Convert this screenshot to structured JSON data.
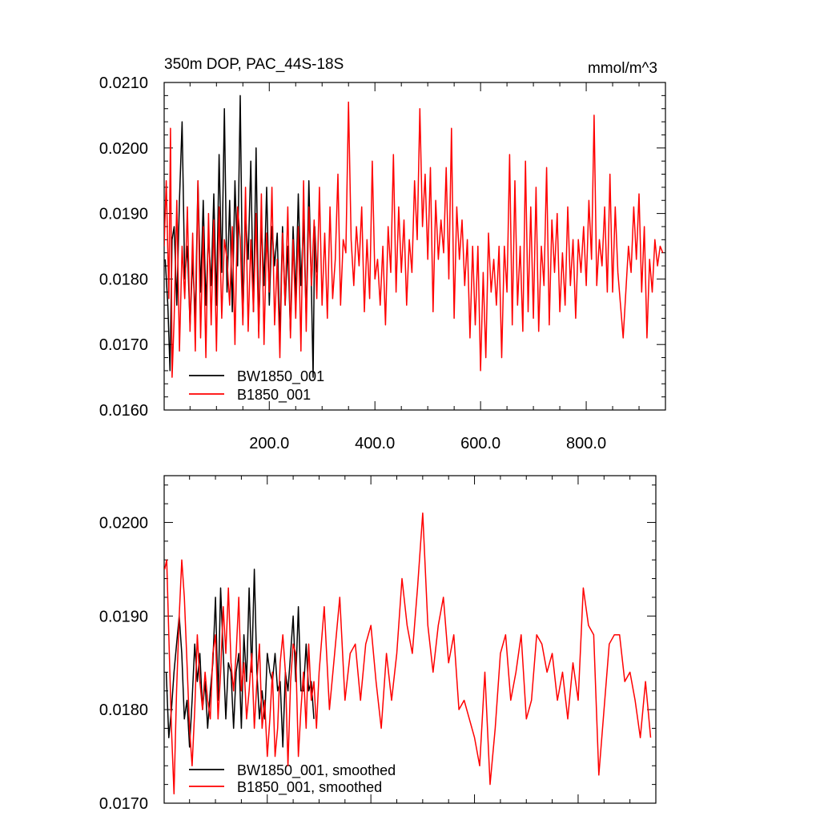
{
  "colors": {
    "black": "#000000",
    "red": "#ff0000",
    "frame": "#000000"
  },
  "chart_data": [
    {
      "type": "line",
      "title": "350m DOP, PAC_44S-18S",
      "units": "mmol/m^3",
      "xlim": [
        1,
        950
      ],
      "ylim": [
        0.016,
        0.021
      ],
      "grid": false,
      "legend_placement": "bottom-left",
      "xticks": [
        200,
        400,
        600,
        800
      ],
      "xtick_labels": [
        "200.0",
        "400.0",
        "600.0",
        "800.0"
      ],
      "yticks": [
        0.016,
        0.017,
        0.018,
        0.019,
        0.02,
        0.021
      ],
      "ytick_labels": [
        "0.0160",
        "0.0170",
        "0.0180",
        "0.0190",
        "0.0200",
        "0.0210"
      ],
      "series": [
        {
          "name": "BW1850_001",
          "color": "#000000",
          "x": [
            3,
            8,
            12,
            16,
            20,
            25,
            30,
            35,
            40,
            45,
            50,
            55,
            60,
            65,
            70,
            75,
            80,
            85,
            90,
            95,
            100,
            105,
            110,
            115,
            120,
            125,
            130,
            135,
            140,
            145,
            150,
            155,
            160,
            165,
            170,
            175,
            180,
            185,
            190,
            195,
            200,
            205,
            210,
            215,
            220,
            225,
            230,
            235,
            240,
            245,
            250,
            255,
            260,
            265,
            270,
            275,
            280,
            283,
            286,
            290
          ],
          "y": [
            0.0183,
            0.0176,
            0.0166,
            0.0186,
            0.0188,
            0.0176,
            0.0192,
            0.0204,
            0.018,
            0.0185,
            0.0173,
            0.0183,
            0.0174,
            0.0195,
            0.0178,
            0.0192,
            0.0176,
            0.0187,
            0.0179,
            0.0193,
            0.0176,
            0.0199,
            0.0181,
            0.0206,
            0.0178,
            0.0192,
            0.0175,
            0.0195,
            0.0182,
            0.0208,
            0.0174,
            0.019,
            0.0183,
            0.0198,
            0.0175,
            0.02,
            0.0172,
            0.0189,
            0.0179,
            0.0194,
            0.0176,
            0.0188,
            0.0182,
            0.0187,
            0.0171,
            0.0188,
            0.0176,
            0.0185,
            0.0172,
            0.0188,
            0.0177,
            0.0193,
            0.0179,
            0.0189,
            0.0174,
            0.0195,
            0.0178,
            0.0165,
            0.0188,
            0.0181
          ]
        },
        {
          "name": "B1850_001",
          "color": "#ff0000",
          "x": [
            1,
            5,
            10,
            13,
            16,
            20,
            25,
            30,
            35,
            40,
            45,
            50,
            55,
            60,
            65,
            70,
            75,
            80,
            85,
            90,
            95,
            100,
            105,
            110,
            115,
            120,
            125,
            130,
            135,
            140,
            145,
            150,
            155,
            160,
            165,
            170,
            175,
            180,
            185,
            190,
            195,
            200,
            205,
            210,
            215,
            220,
            225,
            230,
            235,
            240,
            245,
            250,
            255,
            260,
            265,
            270,
            275,
            280,
            285,
            290,
            295,
            300,
            305,
            310,
            315,
            320,
            325,
            330,
            335,
            340,
            345,
            350,
            355,
            360,
            365,
            370,
            375,
            380,
            385,
            390,
            395,
            400,
            405,
            410,
            415,
            420,
            425,
            430,
            435,
            440,
            445,
            450,
            455,
            460,
            465,
            470,
            475,
            480,
            485,
            490,
            495,
            500,
            505,
            510,
            515,
            520,
            525,
            530,
            535,
            540,
            545,
            550,
            555,
            560,
            565,
            570,
            575,
            580,
            585,
            590,
            595,
            600,
            605,
            610,
            615,
            620,
            625,
            630,
            635,
            640,
            645,
            650,
            655,
            660,
            665,
            670,
            675,
            680,
            685,
            690,
            695,
            700,
            705,
            710,
            715,
            720,
            725,
            730,
            735,
            740,
            745,
            750,
            755,
            760,
            765,
            770,
            775,
            780,
            785,
            790,
            795,
            800,
            805,
            810,
            815,
            820,
            825,
            830,
            835,
            840,
            845,
            850,
            855,
            860,
            865,
            870,
            875,
            880,
            885,
            890,
            895,
            900,
            905,
            910,
            915,
            920,
            925,
            930,
            935,
            940,
            945
          ],
          "y": [
            0.0185,
            0.0195,
            0.0177,
            0.0203,
            0.0165,
            0.0174,
            0.0192,
            0.0169,
            0.0185,
            0.0177,
            0.0191,
            0.0172,
            0.0187,
            0.0169,
            0.0195,
            0.0171,
            0.0188,
            0.0168,
            0.019,
            0.0173,
            0.0189,
            0.0169,
            0.0191,
            0.0174,
            0.0186,
            0.0183,
            0.0176,
            0.0188,
            0.017,
            0.0191,
            0.0186,
            0.0173,
            0.0194,
            0.0172,
            0.0186,
            0.0175,
            0.019,
            0.0171,
            0.0193,
            0.017,
            0.0187,
            0.0178,
            0.0194,
            0.0173,
            0.0183,
            0.0168,
            0.0187,
            0.0176,
            0.0191,
            0.0171,
            0.0186,
            0.0174,
            0.0188,
            0.0169,
            0.0195,
            0.0172,
            0.0191,
            0.0179,
            0.0189,
            0.0177,
            0.0194,
            0.0176,
            0.0187,
            0.0174,
            0.0191,
            0.0177,
            0.0183,
            0.0196,
            0.0176,
            0.0186,
            0.0184,
            0.0207,
            0.0186,
            0.0179,
            0.0188,
            0.0182,
            0.0191,
            0.0175,
            0.0186,
            0.0177,
            0.0198,
            0.018,
            0.0183,
            0.0176,
            0.0185,
            0.0173,
            0.0188,
            0.0181,
            0.0199,
            0.0178,
            0.0191,
            0.0181,
            0.0189,
            0.0176,
            0.0186,
            0.0181,
            0.0195,
            0.0186,
            0.0206,
            0.0188,
            0.0196,
            0.0183,
            0.0197,
            0.0175,
            0.0192,
            0.0183,
            0.0189,
            0.0184,
            0.0197,
            0.018,
            0.0203,
            0.0174,
            0.0191,
            0.0183,
            0.0189,
            0.0179,
            0.0186,
            0.0171,
            0.0185,
            0.0173,
            0.0185,
            0.0166,
            0.0181,
            0.0168,
            0.0187,
            0.0178,
            0.0183,
            0.0176,
            0.0185,
            0.0168,
            0.0185,
            0.0178,
            0.0199,
            0.0173,
            0.0195,
            0.0176,
            0.0185,
            0.0172,
            0.0198,
            0.0175,
            0.0191,
            0.0174,
            0.0194,
            0.0172,
            0.0185,
            0.0179,
            0.0197,
            0.0173,
            0.0189,
            0.0181,
            0.019,
            0.0175,
            0.0184,
            0.0176,
            0.0191,
            0.0179,
            0.0186,
            0.0174,
            0.0186,
            0.0181,
            0.0188,
            0.0179,
            0.0192,
            0.0183,
            0.0205,
            0.0179,
            0.0186,
            0.0182,
            0.0191,
            0.0178,
            0.0196,
            0.0178,
            0.0191,
            0.0181,
            0.0176,
            0.0171,
            0.0178,
            0.0185,
            0.0181,
            0.0191,
            0.0183,
            0.0193,
            0.0178,
            0.0188,
            0.0171,
            0.0183,
            0.0178,
            0.0186,
            0.0182,
            0.0185,
            0.0184
          ]
        }
      ]
    },
    {
      "type": "line",
      "title": "",
      "units": "",
      "xlim": [
        1,
        950
      ],
      "ylim": [
        0.017,
        0.0205
      ],
      "grid": false,
      "legend_placement": "bottom-left",
      "xticks": [
        200,
        400,
        600,
        800
      ],
      "xtick_labels": [],
      "yticks": [
        0.017,
        0.018,
        0.019,
        0.02
      ],
      "ytick_labels": [
        "0.0170",
        "0.0180",
        "0.0190",
        "0.0200"
      ],
      "series": [
        {
          "name": "BW1850_001, smoothed",
          "color": "#000000",
          "x": [
            5,
            10,
            15,
            20,
            25,
            30,
            35,
            40,
            45,
            50,
            55,
            60,
            65,
            70,
            75,
            80,
            85,
            90,
            95,
            100,
            105,
            110,
            115,
            120,
            125,
            130,
            135,
            140,
            145,
            150,
            155,
            160,
            165,
            170,
            175,
            180,
            185,
            190,
            195,
            200,
            205,
            210,
            215,
            220,
            225,
            230,
            235,
            240,
            245,
            250,
            255,
            260,
            265,
            270,
            275,
            280,
            285,
            290
          ],
          "y": [
            0.0184,
            0.0177,
            0.018,
            0.0184,
            0.0187,
            0.019,
            0.0186,
            0.0179,
            0.0181,
            0.0176,
            0.0181,
            0.0187,
            0.0183,
            0.0186,
            0.018,
            0.0183,
            0.0178,
            0.0182,
            0.0185,
            0.0192,
            0.0181,
            0.0193,
            0.0186,
            0.0179,
            0.0185,
            0.0184,
            0.0178,
            0.0184,
            0.0186,
            0.0178,
            0.0188,
            0.0183,
            0.0193,
            0.0184,
            0.0195,
            0.0184,
            0.0179,
            0.0182,
            0.0179,
            0.0186,
            0.0184,
            0.0183,
            0.0186,
            0.0182,
            0.0183,
            0.0176,
            0.0184,
            0.0182,
            0.0186,
            0.019,
            0.0183,
            0.0191,
            0.0182,
            0.0182,
            0.0187,
            0.0182,
            0.0183,
            0.0179
          ]
        },
        {
          "name": "B1850_001, smoothed",
          "color": "#ff0000",
          "x": [
            2,
            6,
            10,
            15,
            20,
            25,
            30,
            35,
            40,
            45,
            50,
            55,
            60,
            65,
            70,
            75,
            80,
            85,
            90,
            95,
            100,
            105,
            110,
            115,
            120,
            125,
            130,
            135,
            140,
            145,
            150,
            155,
            160,
            165,
            170,
            175,
            180,
            185,
            190,
            195,
            200,
            205,
            210,
            215,
            220,
            225,
            230,
            235,
            240,
            245,
            250,
            255,
            260,
            265,
            270,
            275,
            280,
            285,
            290,
            295,
            300,
            310,
            320,
            330,
            340,
            350,
            360,
            370,
            380,
            390,
            400,
            410,
            420,
            430,
            440,
            450,
            460,
            470,
            480,
            490,
            500,
            510,
            520,
            530,
            540,
            550,
            560,
            570,
            580,
            590,
            600,
            610,
            620,
            630,
            640,
            650,
            660,
            670,
            680,
            690,
            700,
            710,
            720,
            730,
            740,
            750,
            760,
            770,
            780,
            790,
            800,
            810,
            820,
            830,
            840,
            850,
            860,
            870,
            880,
            890,
            900,
            910,
            920,
            930,
            940
          ],
          "y": [
            0.0195,
            0.0196,
            0.0188,
            0.0178,
            0.0171,
            0.0182,
            0.019,
            0.0196,
            0.0192,
            0.0185,
            0.0178,
            0.0174,
            0.018,
            0.0188,
            0.0183,
            0.018,
            0.0184,
            0.0181,
            0.0179,
            0.0186,
            0.0188,
            0.0179,
            0.0184,
            0.0191,
            0.0186,
            0.0193,
            0.0185,
            0.0182,
            0.0186,
            0.0192,
            0.0182,
            0.0185,
            0.0179,
            0.0182,
            0.0186,
            0.0178,
            0.0183,
            0.0187,
            0.0178,
            0.0181,
            0.0175,
            0.0179,
            0.0184,
            0.0175,
            0.0178,
            0.0185,
            0.0188,
            0.0184,
            0.0174,
            0.0183,
            0.0187,
            0.0186,
            0.0175,
            0.018,
            0.0184,
            0.0178,
            0.0187,
            0.0181,
            0.0183,
            0.0178,
            0.0184,
            0.0191,
            0.018,
            0.0186,
            0.0192,
            0.0181,
            0.0186,
            0.0187,
            0.0181,
            0.0187,
            0.0189,
            0.0183,
            0.0178,
            0.0186,
            0.0181,
            0.0186,
            0.0194,
            0.0189,
            0.0186,
            0.0193,
            0.0201,
            0.0189,
            0.0184,
            0.0189,
            0.0192,
            0.0185,
            0.0188,
            0.018,
            0.0181,
            0.0179,
            0.0177,
            0.0174,
            0.0184,
            0.0172,
            0.0178,
            0.0186,
            0.0188,
            0.0181,
            0.0184,
            0.0188,
            0.0179,
            0.0181,
            0.0188,
            0.0187,
            0.0184,
            0.0186,
            0.0181,
            0.0184,
            0.0179,
            0.0185,
            0.0181,
            0.0193,
            0.0189,
            0.0188,
            0.0173,
            0.018,
            0.0187,
            0.0188,
            0.0188,
            0.0183,
            0.0184,
            0.0181,
            0.0177,
            0.0183,
            0.0177
          ]
        }
      ]
    }
  ]
}
